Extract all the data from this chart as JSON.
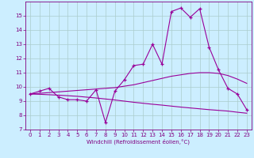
{
  "xlabel": "Windchill (Refroidissement éolien,°C)",
  "hours": [
    0,
    1,
    2,
    3,
    4,
    5,
    6,
    7,
    8,
    9,
    10,
    11,
    12,
    13,
    14,
    15,
    16,
    17,
    18,
    19,
    20,
    21,
    22,
    23
  ],
  "windchill": [
    9.5,
    9.7,
    9.9,
    9.3,
    9.1,
    9.1,
    9.0,
    9.8,
    7.5,
    9.7,
    10.5,
    11.5,
    11.6,
    13.0,
    11.6,
    15.3,
    15.55,
    14.9,
    15.5,
    12.8,
    11.2,
    9.9,
    9.5,
    8.4
  ],
  "smooth_high": [
    9.5,
    9.55,
    9.6,
    9.65,
    9.7,
    9.75,
    9.8,
    9.85,
    9.9,
    9.95,
    10.05,
    10.15,
    10.3,
    10.45,
    10.6,
    10.75,
    10.85,
    10.95,
    11.0,
    11.0,
    10.95,
    10.8,
    10.55,
    10.25
  ],
  "smooth_low": [
    9.5,
    9.48,
    9.45,
    9.42,
    9.38,
    9.34,
    9.28,
    9.22,
    9.15,
    9.08,
    9.0,
    8.92,
    8.85,
    8.78,
    8.72,
    8.65,
    8.58,
    8.52,
    8.46,
    8.4,
    8.35,
    8.3,
    8.22,
    8.15
  ],
  "line_color": "#990099",
  "bg_color": "#cceeff",
  "grid_color": "#aacccc",
  "text_color": "#800080",
  "ylim": [
    7,
    16
  ],
  "yticks": [
    7,
    8,
    9,
    10,
    11,
    12,
    13,
    14,
    15
  ],
  "xticks": [
    0,
    1,
    2,
    3,
    4,
    5,
    6,
    7,
    8,
    9,
    10,
    11,
    12,
    13,
    14,
    15,
    16,
    17,
    18,
    19,
    20,
    21,
    22,
    23
  ]
}
